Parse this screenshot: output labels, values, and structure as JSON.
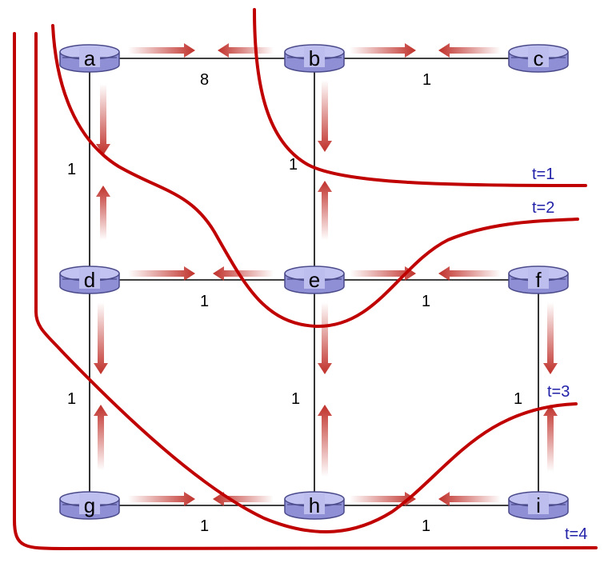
{
  "nodes": [
    {
      "id": "a",
      "label": "a"
    },
    {
      "id": "b",
      "label": "b"
    },
    {
      "id": "c",
      "label": "c"
    },
    {
      "id": "d",
      "label": "d"
    },
    {
      "id": "e",
      "label": "e"
    },
    {
      "id": "f",
      "label": "f"
    },
    {
      "id": "g",
      "label": "g"
    },
    {
      "id": "h",
      "label": "h"
    },
    {
      "id": "i",
      "label": "i"
    }
  ],
  "edges": [
    {
      "from": "a",
      "to": "b",
      "weight": "8"
    },
    {
      "from": "b",
      "to": "c",
      "weight": "1"
    },
    {
      "from": "a",
      "to": "d",
      "weight": "1"
    },
    {
      "from": "b",
      "to": "e",
      "weight": "1"
    },
    {
      "from": "d",
      "to": "e",
      "weight": "1"
    },
    {
      "from": "e",
      "to": "f",
      "weight": "1"
    },
    {
      "from": "d",
      "to": "g",
      "weight": "1"
    },
    {
      "from": "e",
      "to": "h",
      "weight": "1"
    },
    {
      "from": "f",
      "to": "i",
      "weight": "1"
    },
    {
      "from": "g",
      "to": "h",
      "weight": "1"
    },
    {
      "from": "h",
      "to": "i",
      "weight": "1"
    }
  ],
  "time_labels": [
    "t=1",
    "t=2",
    "t=3",
    "t=4"
  ],
  "colors": {
    "router_fill": "#b8b8f0",
    "router_stroke": "#4a4a8a",
    "arrow": "#c0302a",
    "wave": "#c00000",
    "time_label": "#1f1fa8"
  }
}
